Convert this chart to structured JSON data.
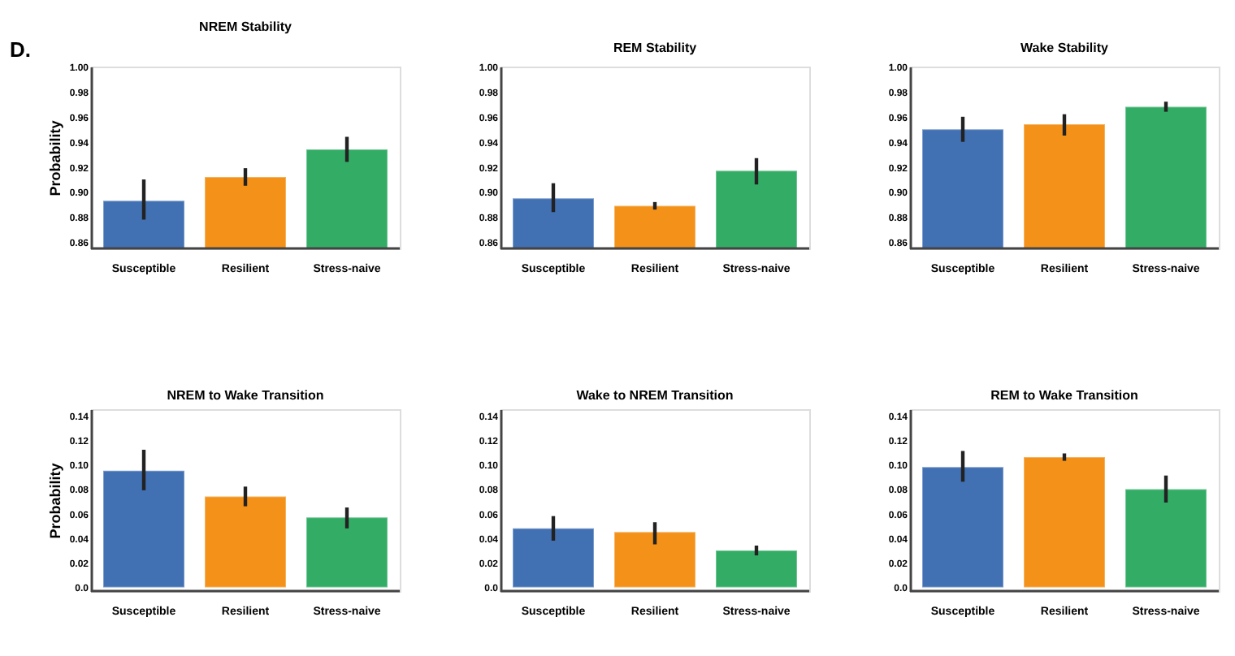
{
  "chart_data": [
    {
      "type": "bar",
      "title": "NREM Stability",
      "ylabel": "Probability",
      "annotations": [
        "D."
      ],
      "categories": [
        "Susceptible",
        "Resilient",
        "Stress-naive"
      ],
      "values": [
        0.893,
        0.912,
        0.934
      ],
      "colors": [
        "#4170b3",
        "#f39119",
        "#33ad66"
      ],
      "errors": [
        [
          0.878,
          0.91
        ],
        [
          0.905,
          0.919
        ],
        [
          0.924,
          0.944
        ]
      ],
      "ylim": [
        0.855,
        1.0
      ],
      "yticks": [
        0.86,
        0.88,
        {
          "value": 0.9,
          "label": "0.90"
        },
        0.92,
        0.94,
        0.96,
        0.98,
        {
          "value": 1.0,
          "label": "1.00"
        }
      ],
      "grid": false,
      "legend": false
    },
    {
      "type": "bar",
      "title": "REM Stability",
      "categories": [
        "Susceptible",
        "Resilient",
        "Stress-naive"
      ],
      "values": [
        0.895,
        0.889,
        0.917
      ],
      "colors": [
        "#4170b3",
        "#f39119",
        "#33ad66"
      ],
      "errors": [
        [
          0.884,
          0.907
        ],
        [
          0.886,
          0.892
        ],
        [
          0.906,
          0.927
        ]
      ],
      "ylim": [
        0.855,
        1.0
      ],
      "yticks": [
        0.86,
        0.88,
        {
          "value": 0.9,
          "label": "0.90"
        },
        0.92,
        0.94,
        0.96,
        0.98,
        {
          "value": 1.0,
          "label": "1.00"
        }
      ],
      "grid": false,
      "legend": false
    },
    {
      "type": "bar",
      "title": "Wake Stability",
      "categories": [
        "Susceptible",
        "Resilient",
        "Stress-naive"
      ],
      "values": [
        0.95,
        0.954,
        0.968
      ],
      "colors": [
        "#4170b3",
        "#f39119",
        "#33ad66"
      ],
      "errors": [
        [
          0.94,
          0.96
        ],
        [
          0.945,
          0.962
        ],
        [
          0.964,
          0.972
        ]
      ],
      "ylim": [
        0.855,
        1.0
      ],
      "yticks": [
        0.86,
        0.88,
        {
          "value": 0.9,
          "label": "0.90"
        },
        0.92,
        0.94,
        0.96,
        0.98,
        {
          "value": 1.0,
          "label": "1.00"
        }
      ],
      "grid": false,
      "legend": false
    },
    {
      "type": "bar",
      "title": "NREM to Wake Transition",
      "ylabel": "Probability",
      "categories": [
        "Susceptible",
        "Resilient",
        "Stress-naive"
      ],
      "values": [
        0.095,
        0.074,
        0.057
      ],
      "colors": [
        "#4170b3",
        "#f39119",
        "#33ad66"
      ],
      "errors": [
        [
          0.079,
          0.112
        ],
        [
          0.066,
          0.082
        ],
        [
          0.048,
          0.065
        ]
      ],
      "ylim": [
        -0.003,
        0.145
      ],
      "yticks": [
        {
          "value": 0,
          "label": "0.0"
        },
        0.02,
        0.04,
        0.06,
        0.08,
        {
          "value": 0.1,
          "label": "0.10"
        },
        0.12,
        0.14
      ],
      "grid": false,
      "legend": false
    },
    {
      "type": "bar",
      "title": "Wake to NREM Transition",
      "categories": [
        "Susceptible",
        "Resilient",
        "Stress-naive"
      ],
      "values": [
        0.048,
        0.045,
        0.03
      ],
      "colors": [
        "#4170b3",
        "#f39119",
        "#33ad66"
      ],
      "errors": [
        [
          0.038,
          0.058
        ],
        [
          0.035,
          0.053
        ],
        [
          0.026,
          0.034
        ]
      ],
      "ylim": [
        -0.003,
        0.145
      ],
      "yticks": [
        {
          "value": 0,
          "label": "0.0"
        },
        0.02,
        0.04,
        0.06,
        0.08,
        {
          "value": 0.1,
          "label": "0.10"
        },
        0.12,
        0.14
      ],
      "grid": false,
      "legend": false
    },
    {
      "type": "bar",
      "title": "REM to Wake Transition",
      "categories": [
        "Susceptible",
        "Resilient",
        "Stress-naive"
      ],
      "values": [
        0.098,
        0.106,
        0.08
      ],
      "colors": [
        "#4170b3",
        "#f39119",
        "#33ad66"
      ],
      "errors": [
        [
          0.086,
          0.111
        ],
        [
          0.103,
          0.109
        ],
        [
          0.069,
          0.091
        ]
      ],
      "ylim": [
        -0.003,
        0.145
      ],
      "yticks": [
        {
          "value": 0,
          "label": "0.0"
        },
        0.02,
        0.04,
        0.06,
        0.08,
        {
          "value": 0.1,
          "label": "0.10"
        },
        0.12,
        0.14
      ],
      "grid": false,
      "legend": false
    }
  ]
}
